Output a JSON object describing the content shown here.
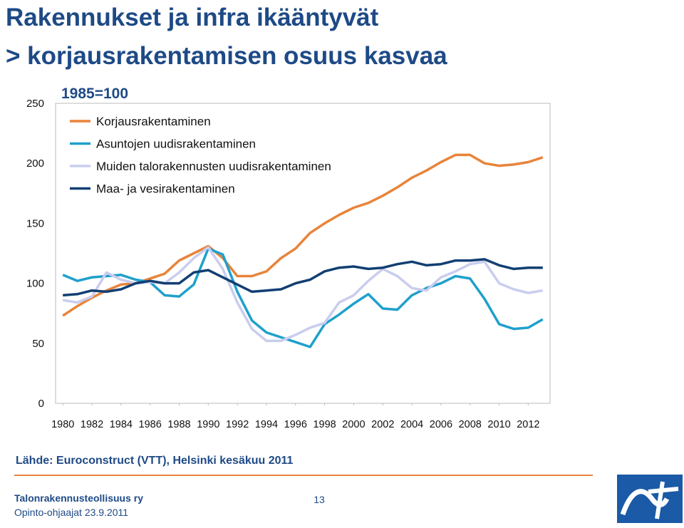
{
  "slide": {
    "title_lines": [
      "Rakennukset ja infra ikääntyvät",
      "> korjausrakentamisen osuus kasvaa"
    ],
    "source": "Lähde: Euroconstruct (VTT), Helsinki kesäkuu 2011",
    "footer_org": "Talonrakennusteollisuus ry",
    "footer_date": "Opinto-ohjaajat 23.9.2011",
    "page_number": 13
  },
  "chart_data": {
    "type": "line",
    "subtitle": "1985=100",
    "x": [
      1980,
      1981,
      1982,
      1983,
      1984,
      1985,
      1986,
      1987,
      1988,
      1989,
      1990,
      1991,
      1992,
      1993,
      1994,
      1995,
      1996,
      1997,
      1998,
      1999,
      2000,
      2001,
      2002,
      2003,
      2004,
      2005,
      2006,
      2007,
      2008,
      2009,
      2010,
      2011,
      2012,
      2013
    ],
    "xlim": [
      1979.5,
      2013.5
    ],
    "xticks": [
      1980,
      1982,
      1984,
      1986,
      1988,
      1990,
      1992,
      1994,
      1996,
      1998,
      2000,
      2002,
      2004,
      2006,
      2008,
      2010,
      2012
    ],
    "ylim": [
      0,
      250
    ],
    "yticks": [
      0,
      50,
      100,
      150,
      200,
      250
    ],
    "grid": false,
    "legend": "upper left",
    "series": [
      {
        "name": "Korjausrakentaminen",
        "color": "#e8843a",
        "values": [
          73,
          81,
          88,
          94,
          99,
          100,
          104,
          108,
          119,
          125,
          131,
          121,
          106,
          106,
          110,
          121,
          129,
          142,
          150,
          157,
          163,
          167,
          173,
          180,
          188,
          194,
          201,
          207,
          207,
          200,
          198,
          199,
          201,
          205
        ]
      },
      {
        "name": "Asuntojen uudisrakentaminen",
        "color": "#1fa0cc",
        "values": [
          107,
          102,
          105,
          106,
          107,
          103,
          101,
          90,
          89,
          99,
          129,
          124,
          93,
          69,
          59,
          55,
          51,
          47,
          66,
          74,
          83,
          91,
          79,
          78,
          90,
          96,
          100,
          106,
          104,
          87,
          66,
          62,
          63,
          70
        ]
      },
      {
        "name": "Muiden talorakennusten uudisrakentaminen",
        "color": "#c9cdee",
        "values": [
          86,
          84,
          89,
          109,
          103,
          100,
          101,
          100,
          109,
          121,
          130,
          112,
          84,
          62,
          52,
          52,
          57,
          63,
          67,
          84,
          90,
          102,
          112,
          106,
          96,
          94,
          105,
          110,
          116,
          118,
          100,
          95,
          92,
          94
        ]
      },
      {
        "name": "Maa- ja vesirakentaminen",
        "color": "#123f73",
        "values": [
          90,
          91,
          94,
          93,
          95,
          100,
          102,
          100,
          100,
          109,
          111,
          105,
          99,
          93,
          94,
          95,
          100,
          103,
          110,
          113,
          114,
          112,
          113,
          116,
          118,
          115,
          116,
          119,
          119,
          120,
          115,
          112,
          113,
          113
        ]
      }
    ]
  }
}
